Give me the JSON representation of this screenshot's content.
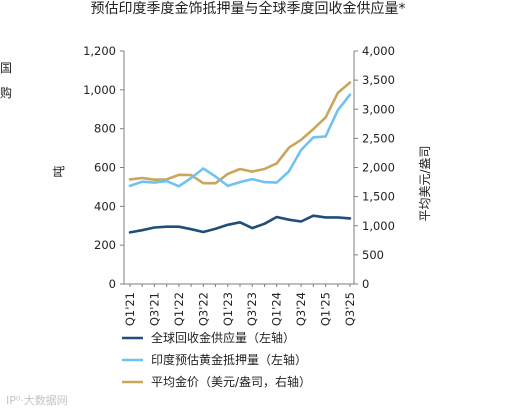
{
  "edge_fragments": [
    "国",
    "购"
  ],
  "watermark": "IP⁰·大数据网",
  "chart_data": {
    "type": "line",
    "title": "预估印度季度金饰抵押量与全球季度回收金供应量*",
    "ylabel_left": "吨",
    "ylabel_right": "平均美元/盎司",
    "ylim_left": [
      0,
      1200
    ],
    "yticks_left": [
      "0",
      "200",
      "400",
      "600",
      "800",
      "1,000",
      "1,200"
    ],
    "ylim_right": [
      0,
      4000
    ],
    "yticks_right": [
      "0",
      "500",
      "1,000",
      "1,500",
      "2,000",
      "2,500",
      "3,000",
      "3,500",
      "4,000"
    ],
    "categories": [
      "Q1'21",
      "Q2'21",
      "Q3'21",
      "Q4'21",
      "Q1'22",
      "Q2'22",
      "Q3'22",
      "Q4'22",
      "Q1'23",
      "Q2'23",
      "Q3'23",
      "Q4'23",
      "Q1'24",
      "Q2'24",
      "Q3'24",
      "Q4'24",
      "Q1'25",
      "Q2'25",
      "Q3'25"
    ],
    "tick_labels": [
      "Q1'21",
      "Q3'21",
      "Q1'22",
      "Q3'22",
      "Q1'23",
      "Q3'23",
      "Q1'24",
      "Q3'24",
      "Q1'25",
      "Q3'25"
    ],
    "grid": false,
    "legend_position": "bottom",
    "series": [
      {
        "name": "全球回收金供应量（左轴）",
        "axis": "left",
        "color": "#1f4e79",
        "values": [
          266,
          277,
          291,
          295,
          295,
          282,
          268,
          285,
          305,
          318,
          288,
          310,
          345,
          331,
          322,
          352,
          343,
          343,
          338
        ]
      },
      {
        "name": "印度预估黄金抵押量（左轴）",
        "axis": "left",
        "color": "#6fc3f0",
        "values": [
          505,
          527,
          522,
          530,
          503,
          546,
          595,
          553,
          505,
          525,
          540,
          525,
          522,
          580,
          690,
          755,
          760,
          895,
          975
        ]
      },
      {
        "name": "平均金价（美元/盎司，右轴）",
        "axis": "right",
        "color": "#c9a659",
        "values": [
          1795,
          1820,
          1790,
          1795,
          1875,
          1870,
          1730,
          1730,
          1890,
          1975,
          1930,
          1975,
          2070,
          2340,
          2475,
          2660,
          2860,
          3280,
          3460
        ]
      }
    ]
  }
}
